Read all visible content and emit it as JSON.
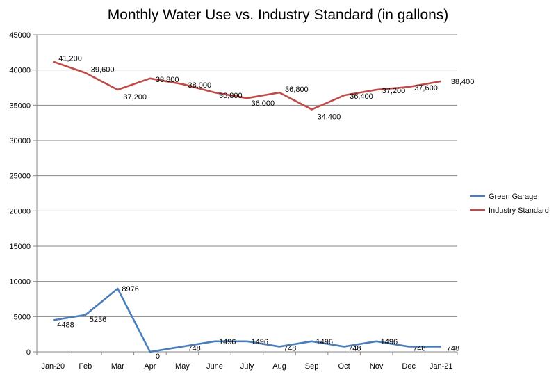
{
  "chart_data": {
    "type": "line",
    "title": "Monthly Water Use vs. Industry Standard (in gallons)",
    "categories": [
      "Jan-20",
      "Feb",
      "Mar",
      "Apr",
      "May",
      "June",
      "July",
      "Aug",
      "Sep",
      "Oct",
      "Nov",
      "Dec",
      "Jan-21"
    ],
    "ylim": [
      0,
      45000
    ],
    "yticks": [
      "0",
      "5000",
      "10000",
      "15000",
      "20000",
      "25000",
      "30000",
      "35000",
      "40000",
      "45000"
    ],
    "grid": true,
    "legend_position": "right",
    "series": [
      {
        "name": "Green Garage",
        "color": "#4a7ebb",
        "values": [
          4488,
          5236,
          8976,
          0,
          748,
          1496,
          1496,
          748,
          1496,
          748,
          1496,
          748,
          748
        ],
        "labels": [
          "4488",
          "5236",
          "8976",
          "0",
          "748",
          "1496",
          "1496",
          "748",
          "1496",
          "748",
          "1496",
          "748",
          "748"
        ]
      },
      {
        "name": "Industry Standard",
        "color": "#be4b48",
        "values": [
          41200,
          39600,
          37200,
          38800,
          38000,
          36800,
          36000,
          36800,
          34400,
          36400,
          37200,
          37600,
          38400
        ],
        "labels": [
          "41,200",
          "39,600",
          "37,200",
          "38,800",
          "38,000",
          "36,800",
          "36,000",
          "36,800",
          "34,400",
          "36,400",
          "37,200",
          "37,600",
          "38,400"
        ]
      }
    ]
  }
}
